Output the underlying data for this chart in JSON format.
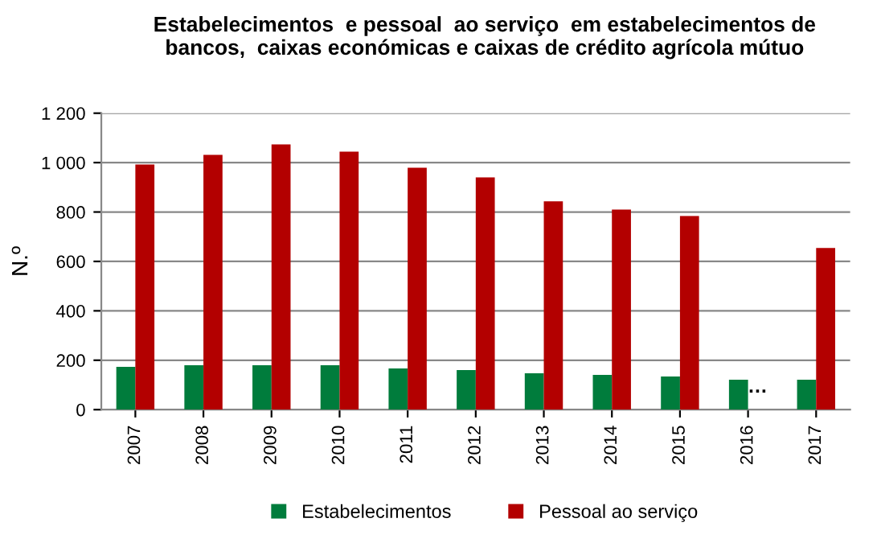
{
  "chart_data": {
    "type": "bar",
    "title": "Estabelecimentos  e pessoal  ao serviço  em estabelecimentos de\nbancos,  caixas económicas e caixas de crédito agrícola mútuo",
    "ylabel": "N.º",
    "categories": [
      "2007",
      "2008",
      "2009",
      "2010",
      "2011",
      "2012",
      "2013",
      "2014",
      "2015",
      "2016",
      "2017"
    ],
    "series": [
      {
        "name": "Estabelecimentos",
        "color": "#007c3c",
        "values": [
          173,
          180,
          180,
          180,
          167,
          160,
          147,
          141,
          134,
          121,
          121
        ]
      },
      {
        "name": "Pessoal ao serviço",
        "color": "#b30000",
        "values": [
          992,
          1031,
          1074,
          1044,
          979,
          940,
          843,
          810,
          784,
          null,
          654
        ]
      }
    ],
    "ylim": [
      0,
      1200
    ],
    "yticks": [
      0,
      200,
      400,
      600,
      800,
      {
        "value": 1000,
        "label": "1 000"
      },
      {
        "value": 1200,
        "label": "1 200"
      }
    ],
    "grid": "y",
    "legend": "bottom",
    "annotations": [
      {
        "text": "…",
        "x": "2016",
        "y": 90
      }
    ]
  }
}
